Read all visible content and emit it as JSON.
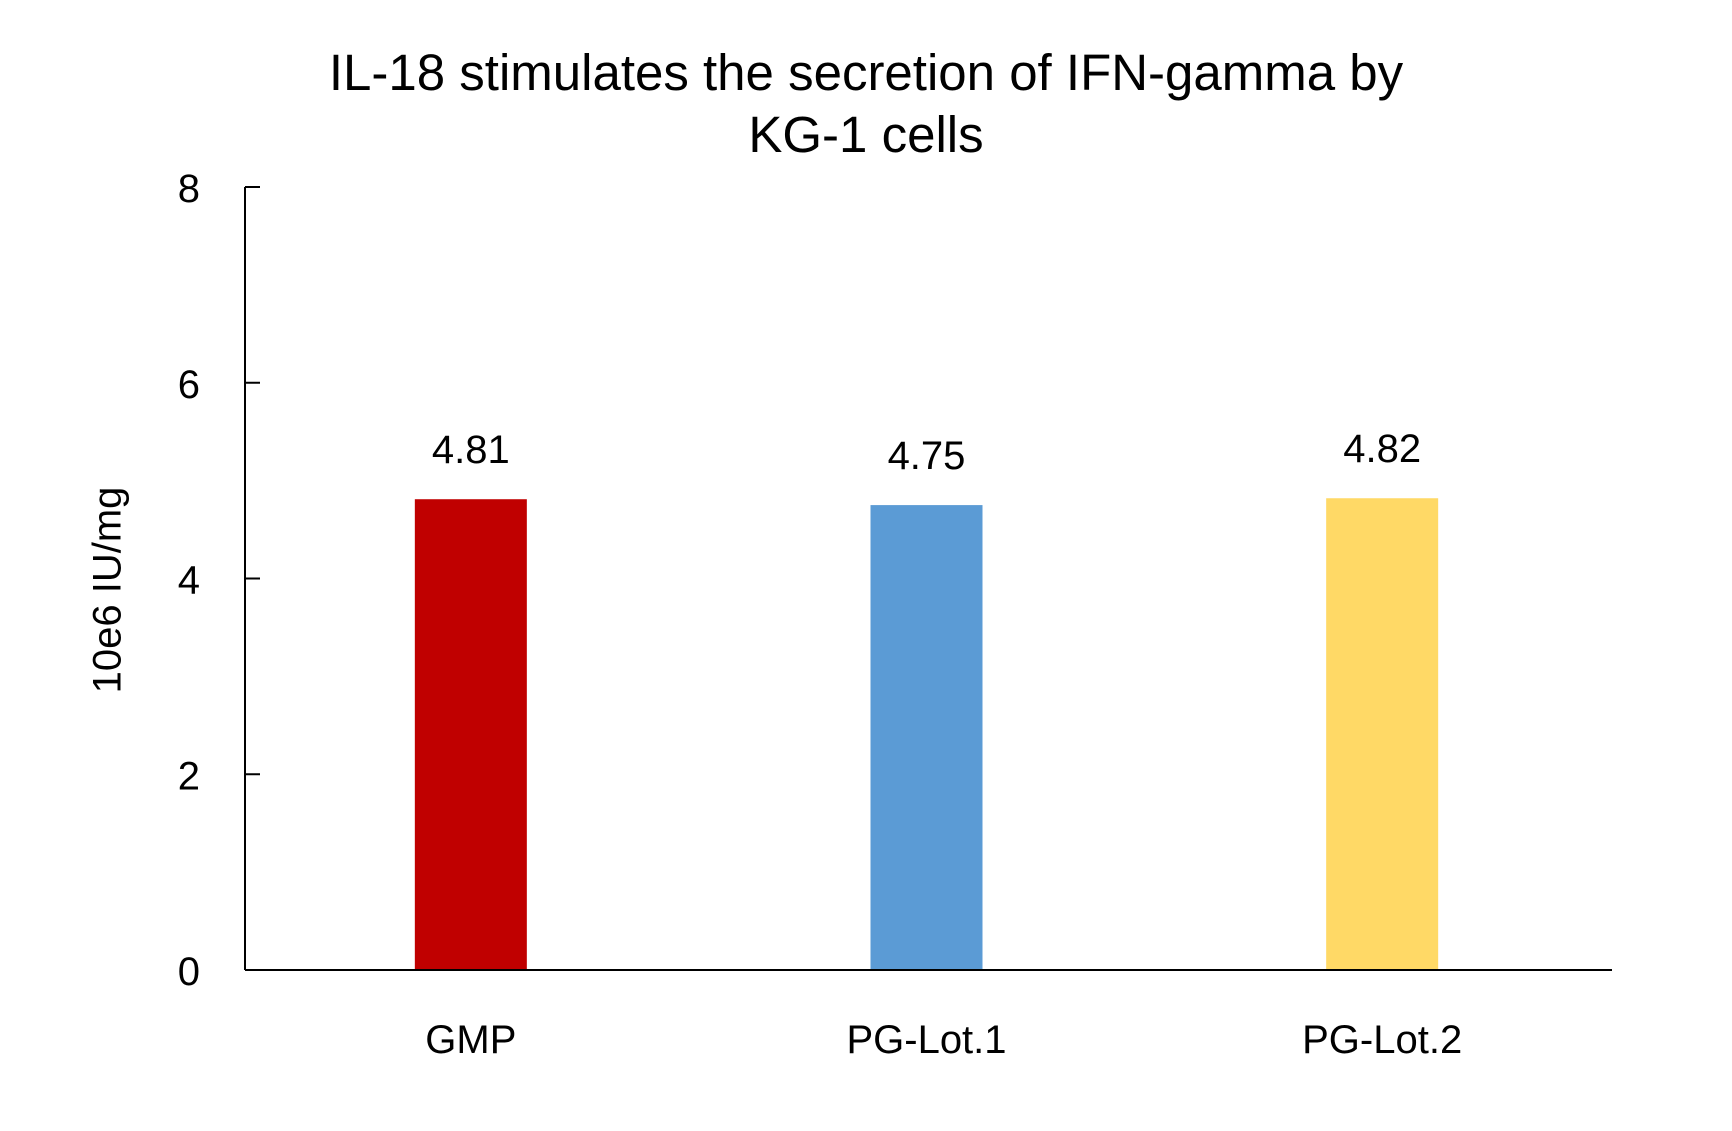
{
  "chart_data": {
    "type": "bar",
    "title_line1": "IL-18 stimulates the secretion of IFN-gamma by",
    "title_line2": "KG-1 cells",
    "xlabel": "",
    "ylabel": "10e6 IU/mg",
    "categories": [
      "GMP",
      "PG-Lot.1",
      "PG-Lot.2"
    ],
    "values": [
      4.81,
      4.75,
      4.82
    ],
    "data_labels": [
      "4.81",
      "4.75",
      "4.82"
    ],
    "colors": [
      "#C00000",
      "#5B9BD5",
      "#FFD966"
    ],
    "ylim": [
      0,
      8
    ],
    "yticks": [
      0,
      2,
      4,
      6,
      8
    ],
    "grid": false,
    "legend": "none"
  }
}
